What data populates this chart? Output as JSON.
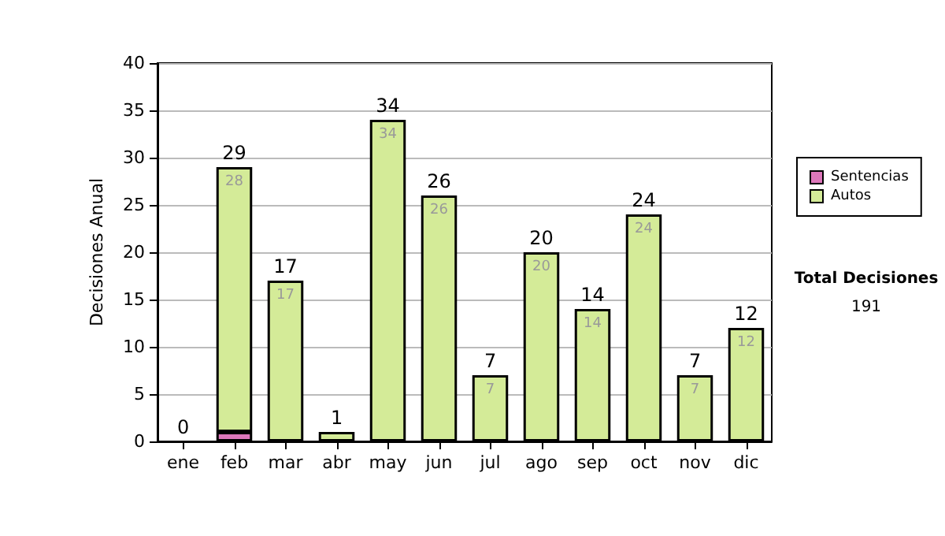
{
  "chart_data": {
    "type": "bar",
    "stacked": true,
    "ylabel": "Decisiones Anual",
    "categories": [
      "ene",
      "feb",
      "mar",
      "abr",
      "may",
      "jun",
      "jul",
      "ago",
      "sep",
      "oct",
      "nov",
      "dic"
    ],
    "series": [
      {
        "name": "Sentencias",
        "color": "#dd77bb",
        "values": [
          0,
          1,
          0,
          0,
          0,
          0,
          0,
          0,
          0,
          0,
          0,
          0
        ]
      },
      {
        "name": "Autos",
        "color": "#d4eb98",
        "values": [
          0,
          28,
          17,
          1,
          34,
          26,
          7,
          20,
          14,
          24,
          7,
          12
        ],
        "value_labels": [
          null,
          "28",
          "17",
          null,
          "34",
          "26",
          "7",
          "20",
          "14",
          "24",
          "7",
          "12"
        ]
      }
    ],
    "totals": [
      "0",
      "29",
      "17",
      "1",
      "34",
      "26",
      "7",
      "20",
      "14",
      "24",
      "7",
      "12"
    ],
    "ylim": [
      0,
      40
    ],
    "yticks": [
      0,
      5,
      10,
      15,
      20,
      25,
      30,
      35,
      40
    ],
    "grid": "y",
    "legend": "right",
    "annotations": [
      "Total Decisiones",
      "191"
    ]
  }
}
